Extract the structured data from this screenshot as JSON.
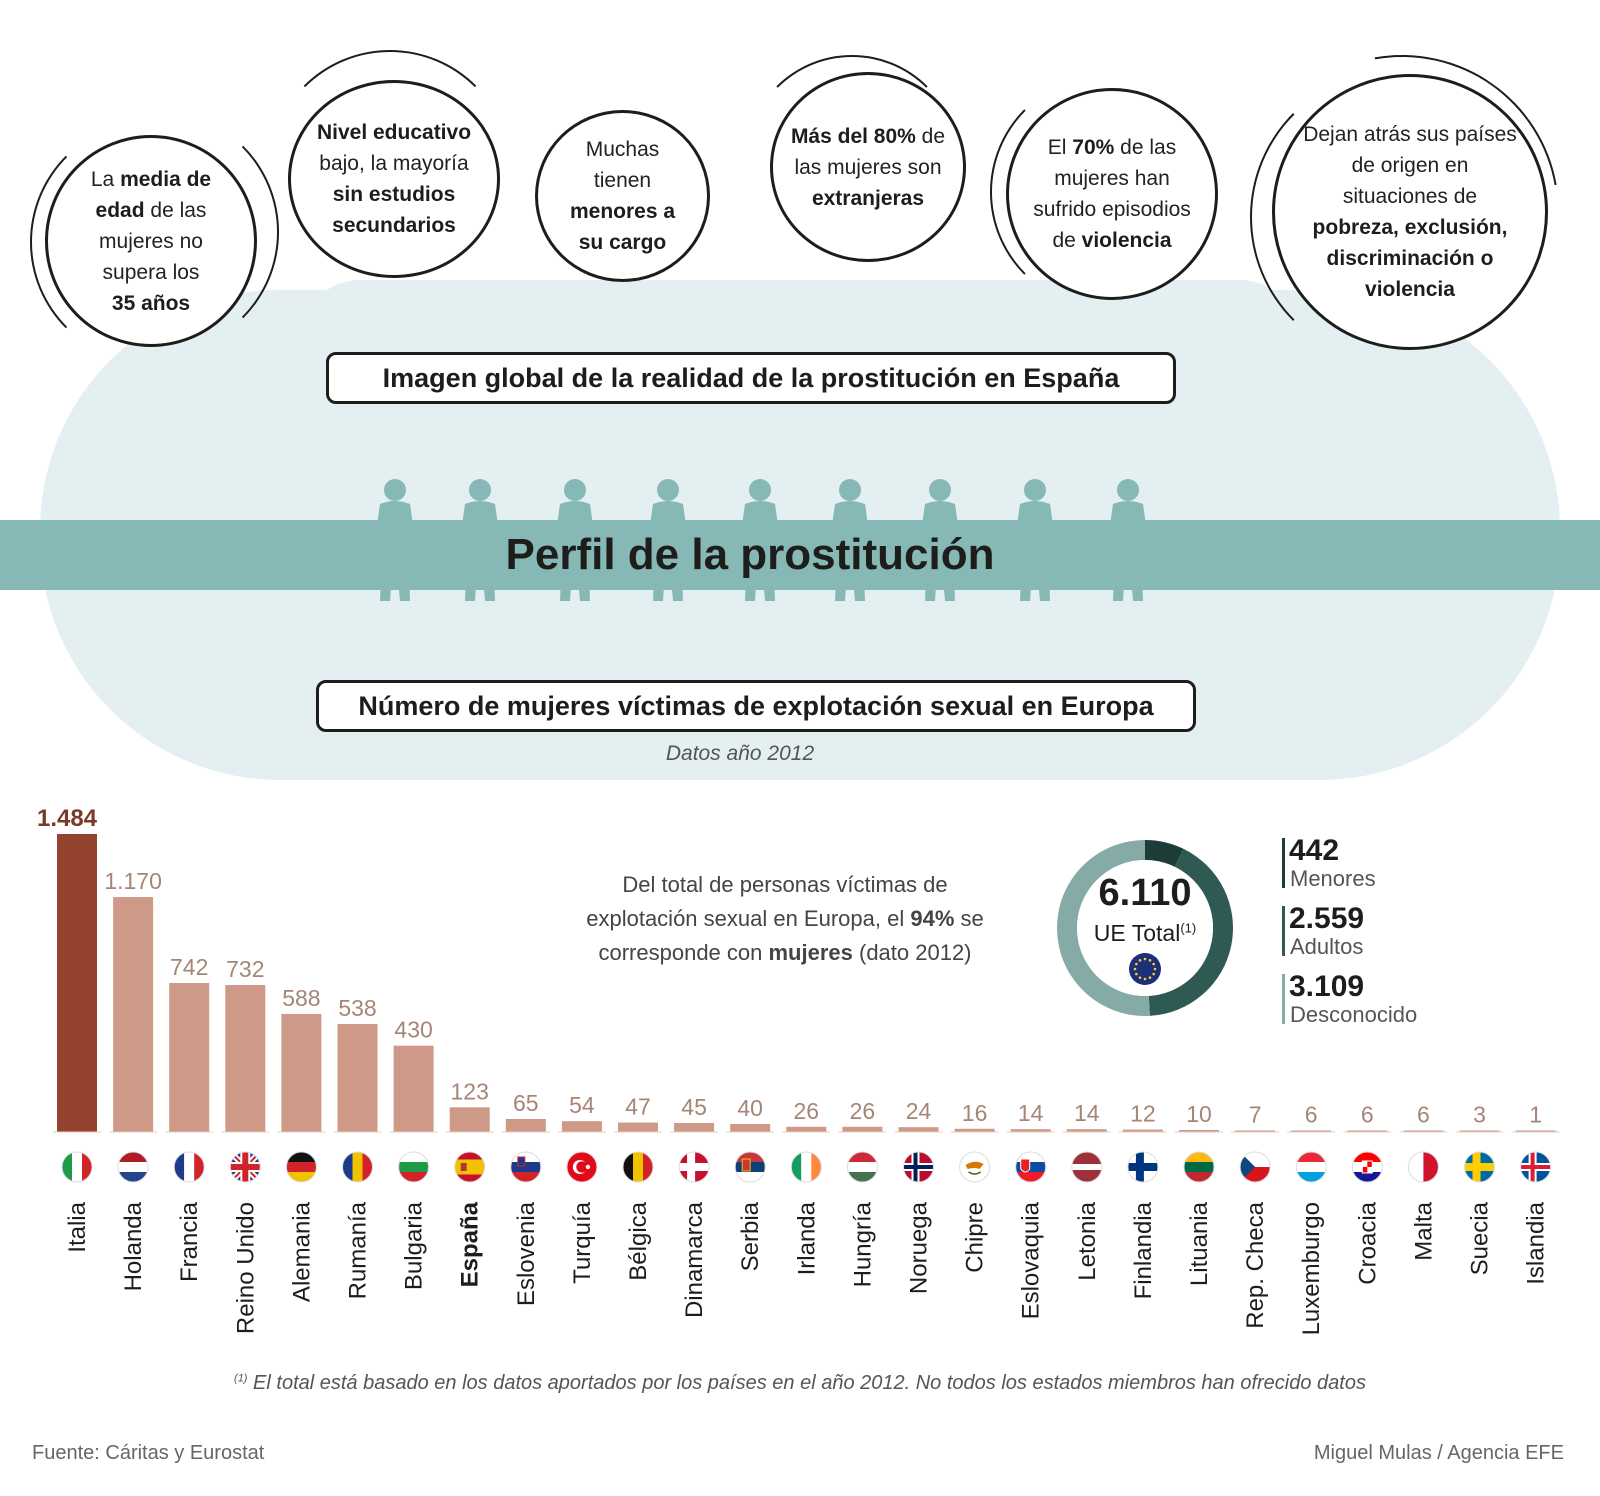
{
  "bubbles": [
    {
      "parts": [
        [
          "La ",
          false
        ],
        [
          "media de",
          true
        ],
        [
          "\n",
          false
        ],
        [
          "edad",
          true
        ],
        [
          " de las\nmujeres no\nsupera los\n",
          false
        ],
        [
          "35 años",
          true
        ]
      ]
    },
    {
      "parts": [
        [
          "Nivel educativo",
          true
        ],
        [
          "\nbajo, la mayoría\n",
          false
        ],
        [
          "sin estudios\nsecundarios",
          true
        ]
      ]
    },
    {
      "parts": [
        [
          "Muchas\ntienen\n",
          false
        ],
        [
          "menores a\nsu cargo",
          true
        ]
      ]
    },
    {
      "parts": [
        [
          "Más del 80%",
          true
        ],
        [
          " de\nlas mujeres son\n",
          false
        ],
        [
          "extranjeras",
          true
        ]
      ]
    },
    {
      "parts": [
        [
          "El ",
          false
        ],
        [
          "70%",
          true
        ],
        [
          " de las\nmujeres han\nsufrido episodios\nde ",
          false
        ],
        [
          "violencia",
          true
        ]
      ]
    },
    {
      "parts": [
        [
          "Dejan atrás sus países\nde origen en\nsituaciones de\n",
          false
        ],
        [
          "pobreza, exclusión,\ndiscriminación o\nviolencia",
          true
        ]
      ]
    }
  ],
  "section1_title": "Imagen global de la realidad de la prostitución en España",
  "band_title": "Perfil de la prostitución",
  "section2_title": "Número de mujeres víctimas de explotación sexual en Europa",
  "section2_subtitle": "Datos año 2012",
  "callout": {
    "parts": [
      [
        "Del total de personas víctimas de\nexplotación sexual en Europa, el ",
        false
      ],
      [
        "94%",
        true
      ],
      [
        " se\ncorresponde con ",
        false
      ],
      [
        "mujeres",
        true
      ],
      [
        " (dato 2012)",
        false
      ]
    ]
  },
  "donut": {
    "total": "6.110",
    "total_label": "UE Total",
    "total_sup": "(1)",
    "segments": [
      {
        "label": "Menores",
        "value": 442,
        "display": "442",
        "color": "#1f3d38"
      },
      {
        "label": "Adultos",
        "value": 2559,
        "display": "2.559",
        "color": "#2f5a53"
      },
      {
        "label": "Desconocido",
        "value": 3109,
        "display": "3.109",
        "color": "#86aaa6"
      }
    ]
  },
  "chart_data": {
    "type": "bar",
    "title": "Número de mujeres víctimas de explotación sexual en Europa",
    "subtitle": "Datos año 2012",
    "categories": [
      "Italia",
      "Holanda",
      "Francia",
      "Reino Unido",
      "Alemania",
      "Rumanía",
      "Bulgaria",
      "España",
      "Eslovenia",
      "Turquía",
      "Bélgica",
      "Dinamarca",
      "Serbia",
      "Irlanda",
      "Hungría",
      "Noruega",
      "Chipre",
      "Eslovaquia",
      "Letonia",
      "Finlandia",
      "Lituania",
      "Rep. Checa",
      "Luxemburgo",
      "Croacia",
      "Malta",
      "Suecia",
      "Islandia"
    ],
    "values": [
      1484,
      1170,
      742,
      732,
      588,
      538,
      430,
      123,
      65,
      54,
      47,
      45,
      40,
      26,
      26,
      24,
      16,
      14,
      14,
      12,
      10,
      7,
      6,
      6,
      6,
      3,
      1
    ],
    "labels": [
      "1.484",
      "1.170",
      "742",
      "732",
      "588",
      "538",
      "430",
      "123",
      "65",
      "54",
      "47",
      "45",
      "40",
      "26",
      "26",
      "24",
      "16",
      "14",
      "14",
      "12",
      "10",
      "7",
      "6",
      "6",
      "6",
      "3",
      "1"
    ],
    "highlight_category": "España",
    "colors": {
      "top": "#94432f",
      "bar": "#cf9987",
      "label": "#a58576",
      "top_label": "#7a3a28"
    },
    "flags": [
      "it",
      "nl",
      "fr",
      "gb",
      "de",
      "ro",
      "bg",
      "es",
      "si",
      "tr",
      "be",
      "dk",
      "rs",
      "ie",
      "hu",
      "no",
      "cy",
      "sk",
      "lv",
      "fi",
      "lt",
      "cz",
      "lu",
      "hr",
      "mt",
      "se",
      "is"
    ]
  },
  "footnote": "El total está basado en los datos aportados por los países en el año 2012. No todos los estados miembros han ofrecido datos",
  "footnote_sup": "(1)",
  "source": "Fuente: Cáritas y Eurostat",
  "credit": "Miguel Mulas / Agencia EFE"
}
